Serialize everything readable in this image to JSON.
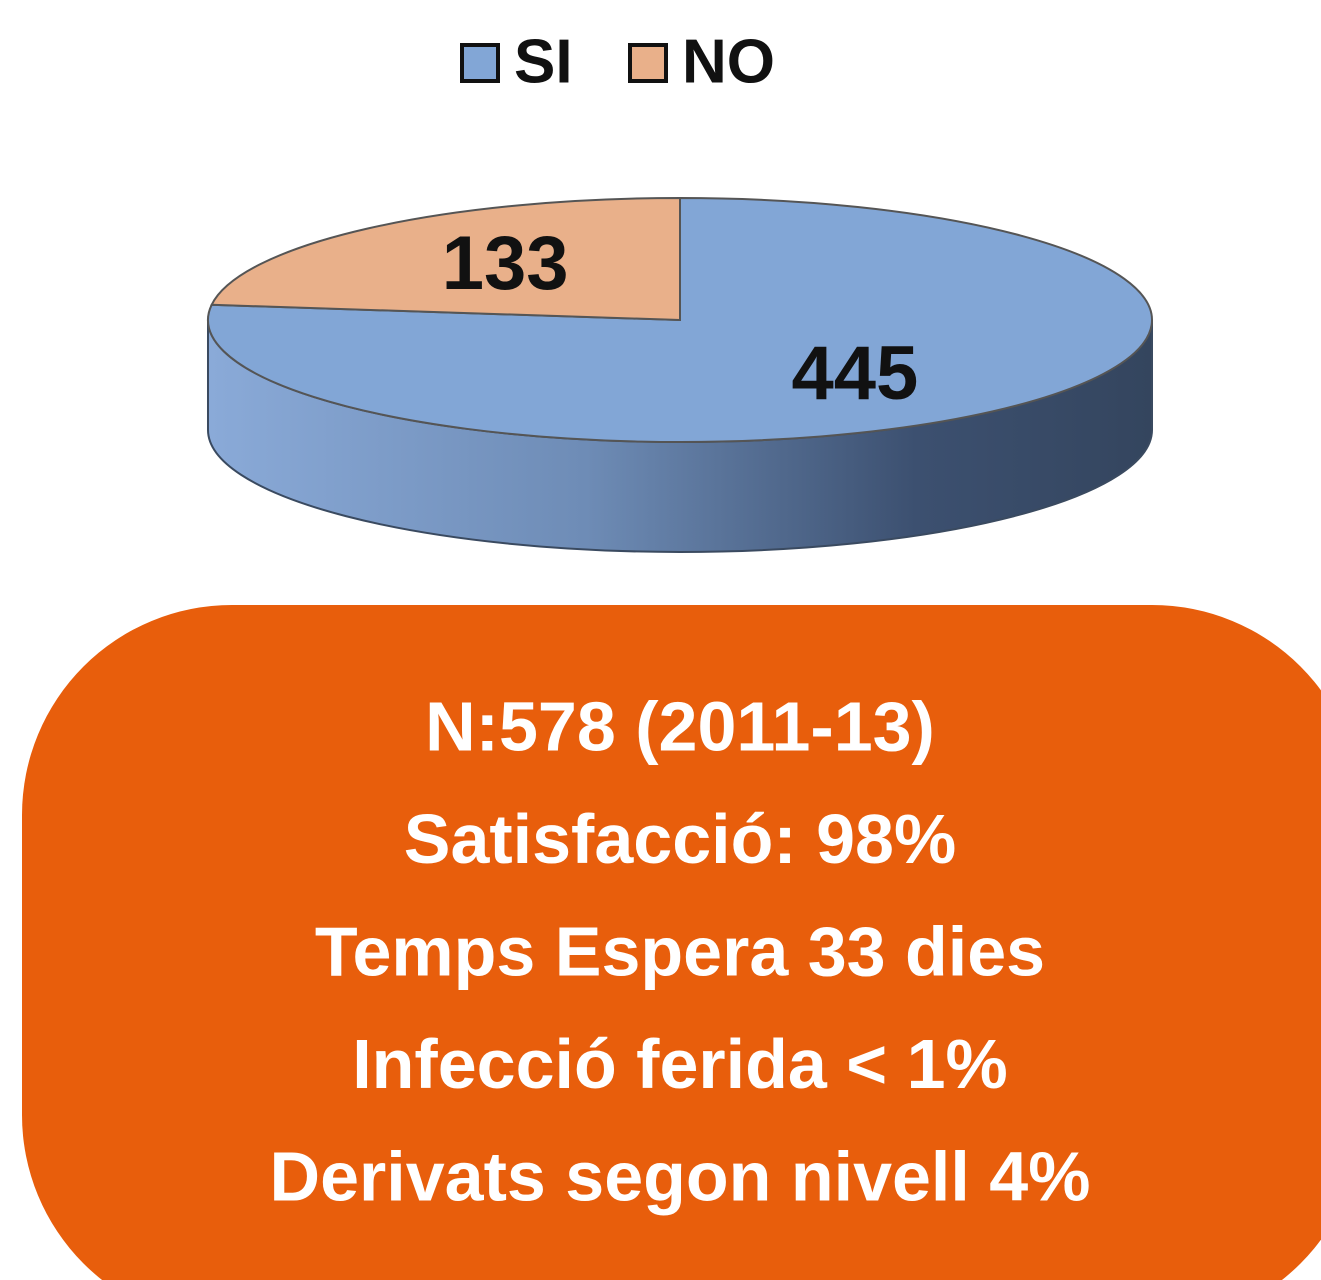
{
  "chart_data": {
    "type": "pie",
    "categories": [
      "SI",
      "NO"
    ],
    "values": [
      445,
      133
    ],
    "colors": [
      "#82a6d6",
      "#e9b08a"
    ],
    "legend": "top"
  },
  "box": {
    "lines": [
      "N:578 (2011-13)",
      "Satisfacció: 98%",
      "Temps Espera 33 dies",
      "Infecció ferida < 1%",
      "Derivats segon nivell 4%"
    ]
  }
}
